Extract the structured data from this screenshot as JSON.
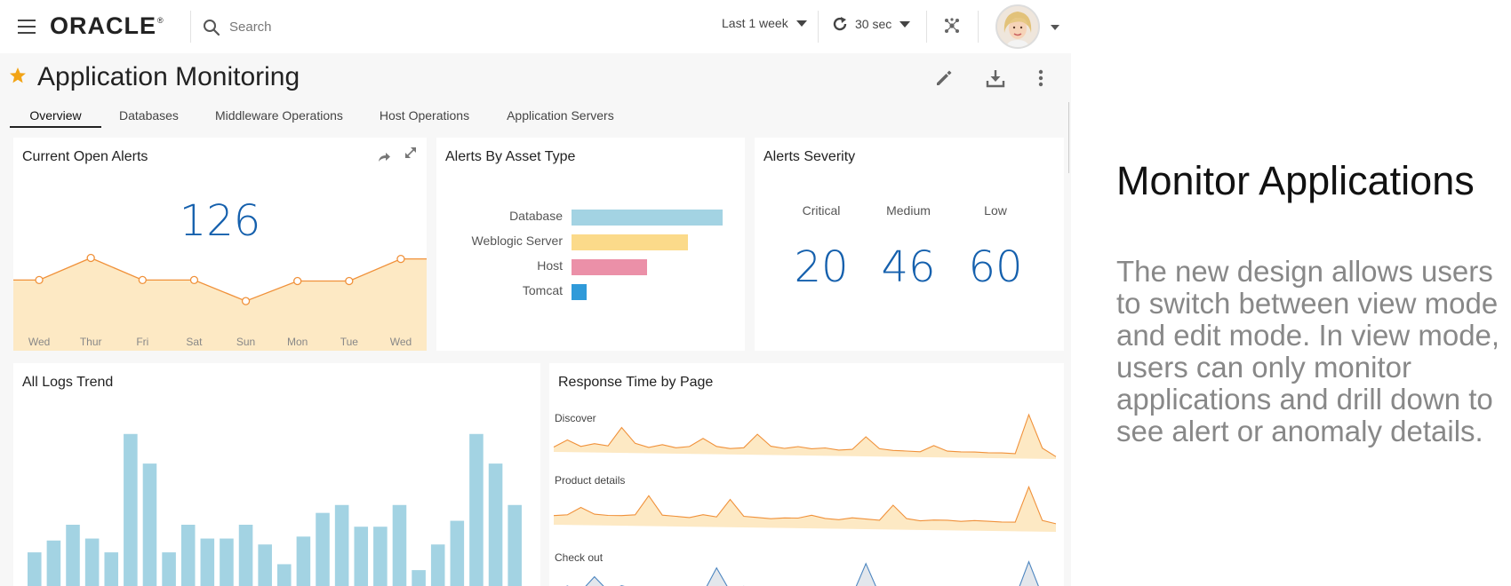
{
  "header": {
    "logo": "ORACLE",
    "search_placeholder": "Search",
    "time_range": "Last 1 week",
    "refresh": "30 sec",
    "icons": [
      "menu-icon",
      "search-icon",
      "refresh-icon",
      "network-icon",
      "avatar"
    ]
  },
  "page": {
    "title": "Application Monitoring",
    "actions": [
      "edit-icon",
      "download-icon",
      "more-icon"
    ]
  },
  "tabs": [
    {
      "label": "Overview",
      "active": true
    },
    {
      "label": "Databases",
      "active": false
    },
    {
      "label": "Middleware Operations",
      "active": false
    },
    {
      "label": "Host Operations",
      "active": false
    },
    {
      "label": "Application Servers",
      "active": false
    }
  ],
  "cards": {
    "open_alerts": {
      "title": "Current Open Alerts",
      "value": "126"
    },
    "asset_type": {
      "title": "Alerts By Asset Type"
    },
    "severity": {
      "title": "Alerts Severity",
      "items": [
        {
          "label": "Critical",
          "value": "20"
        },
        {
          "label": "Medium",
          "value": "46"
        },
        {
          "label": "Low",
          "value": "60"
        }
      ]
    },
    "logs_trend": {
      "title": "All Logs Trend"
    },
    "response_time": {
      "title": "Response Time by Page",
      "pages": [
        "Discover",
        "Product details",
        "Check out"
      ]
    }
  },
  "chart_data": [
    {
      "type": "line",
      "title": "Current Open Alerts",
      "categories": [
        "Wed",
        "Thur",
        "Fri",
        "Sat",
        "Sun",
        "Mon",
        "Tue",
        "Wed"
      ],
      "values": [
        51,
        73,
        51,
        51,
        30,
        50,
        50,
        72
      ],
      "ylim": [
        0,
        100
      ],
      "fill": true,
      "color": "#f0913a",
      "fill_color": "#fde9c4"
    },
    {
      "type": "bar",
      "orientation": "horizontal",
      "title": "Alerts By Asset Type",
      "categories": [
        "Database",
        "Weblogic Server",
        "Host",
        "Tomcat"
      ],
      "values": [
        100,
        77,
        50,
        10
      ],
      "xlim": [
        0,
        100
      ],
      "colors": [
        "#a3d3e3",
        "#fbda8a",
        "#eb90a8",
        "#2f9ad9"
      ]
    },
    {
      "type": "bar",
      "title": "All Logs Trend",
      "values": [
        22,
        28,
        36,
        29,
        22,
        82,
        67,
        22,
        36,
        29,
        29,
        36,
        26,
        16,
        30,
        42,
        46,
        35,
        35,
        46,
        13,
        26,
        38,
        82,
        67,
        46
      ],
      "ylim": [
        0,
        90
      ],
      "color": "#a3d3e3"
    },
    {
      "type": "area",
      "title": "Response Time by Page",
      "series": [
        {
          "name": "Discover",
          "values": [
            10,
            25,
            12,
            18,
            14,
            52,
            20,
            12,
            18,
            12,
            15,
            32,
            16,
            12,
            14,
            42,
            18,
            14,
            18,
            14,
            16,
            12,
            14,
            40,
            16,
            13,
            12,
            11,
            24,
            13,
            12,
            12,
            11,
            11,
            10,
            90,
            22,
            5
          ],
          "color": "#f0913a",
          "fill": "#fde9c4"
        },
        {
          "name": "Product details",
          "values": [
            18,
            20,
            35,
            22,
            20,
            20,
            22,
            60,
            22,
            20,
            18,
            24,
            20,
            55,
            22,
            20,
            18,
            20,
            20,
            26,
            20,
            18,
            22,
            20,
            18,
            48,
            22,
            18,
            20,
            20,
            18,
            20,
            19,
            18,
            18,
            88,
            22,
            16
          ],
          "color": "#f0913a",
          "fill": "#fde9c4"
        },
        {
          "name": "Check out",
          "values": [
            10,
            22,
            12,
            40,
            14,
            24,
            18,
            12,
            14,
            12,
            22,
            12,
            60,
            16,
            26,
            12,
            24,
            18,
            14,
            18,
            12,
            16,
            12,
            72,
            14,
            16,
            20,
            12,
            16,
            12,
            12,
            14,
            12,
            12,
            12,
            80,
            16,
            10
          ],
          "color": "#4d86c0",
          "fill": "#e3e7ec"
        }
      ]
    }
  ],
  "side": {
    "title": "Monitor Applications",
    "text": "The new design allows users to switch between view mode and edit mode. In view mode, users can only monitor applications and drill down to see alert or anomaly details."
  }
}
